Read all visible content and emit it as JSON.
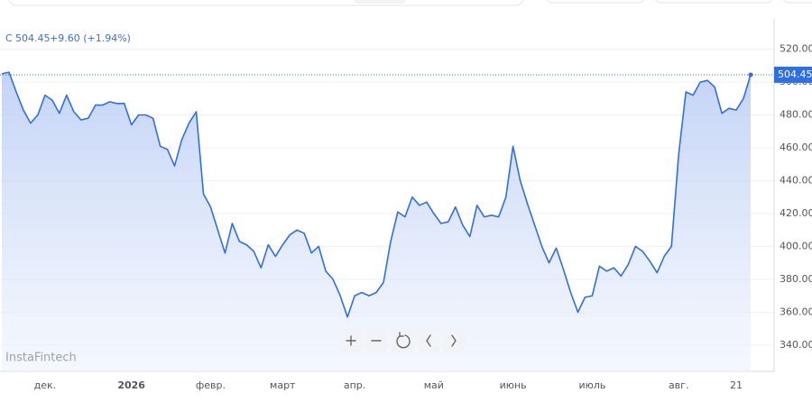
{
  "chart_data": {
    "type": "line",
    "header": {
      "symbol": "C",
      "price": "504.45",
      "change": "+9.60 (+1.94%)"
    },
    "watermark": "InstaFintech",
    "categories": [
      null,
      null,
      null,
      null,
      null,
      null,
      "дек.",
      null,
      null,
      null,
      null,
      null,
      null,
      null,
      null,
      null,
      null,
      null,
      "2026",
      null,
      null,
      null,
      null,
      null,
      null,
      null,
      null,
      null,
      null,
      "февр.",
      null,
      null,
      null,
      null,
      null,
      null,
      null,
      null,
      null,
      "март",
      null,
      null,
      null,
      null,
      null,
      null,
      null,
      null,
      null,
      "апр.",
      null,
      null,
      null,
      null,
      null,
      null,
      null,
      null,
      null,
      null,
      "май",
      null,
      null,
      null,
      null,
      null,
      null,
      null,
      null,
      null,
      null,
      "июнь",
      null,
      null,
      null,
      null,
      null,
      null,
      null,
      null,
      null,
      null,
      "июль",
      null,
      null,
      null,
      null,
      null,
      null,
      null,
      null,
      null,
      null,
      null,
      "авг.",
      null,
      null,
      null,
      null,
      null,
      null,
      null,
      "21",
      null,
      null
    ],
    "series": [
      {
        "color": "#2f6fe6",
        "values": [
          505,
          506,
          494,
          483,
          475,
          480,
          492,
          489,
          481,
          492,
          482,
          477,
          478,
          486,
          486,
          488,
          487,
          487,
          474,
          480,
          480,
          478,
          461,
          459,
          449,
          465,
          475,
          482,
          432,
          424,
          410,
          396,
          414,
          403,
          401,
          397,
          387,
          401,
          394,
          401,
          407,
          410,
          408,
          396,
          400,
          385,
          380,
          370,
          357,
          370,
          372,
          370,
          372,
          378,
          403,
          421,
          418,
          430,
          425,
          427,
          420,
          414,
          415,
          424,
          413,
          406,
          425,
          418,
          419,
          418,
          430,
          461,
          440,
          426,
          413,
          400,
          390,
          399,
          386,
          372,
          360,
          369,
          370,
          388,
          385,
          387,
          382,
          389,
          400,
          397,
          391,
          384,
          394,
          400,
          456,
          494,
          492,
          500,
          501,
          497,
          481,
          484,
          483,
          490,
          504.45
        ]
      }
    ],
    "ylim": [
      324,
      528
    ],
    "yticks": [
      {
        "value": 340,
        "label": "340.00"
      },
      {
        "value": 360,
        "label": "360.00"
      },
      {
        "value": 380,
        "label": "380.00"
      },
      {
        "value": 400,
        "label": "400.00"
      },
      {
        "value": 420,
        "label": "420.00"
      },
      {
        "value": 440,
        "label": "440.00"
      },
      {
        "value": 460,
        "label": "460.00"
      },
      {
        "value": 480,
        "label": "480.00"
      },
      {
        "value": 500,
        "label": "500.00"
      },
      {
        "value": 520,
        "label": "520.00"
      }
    ],
    "grid": true
  }
}
